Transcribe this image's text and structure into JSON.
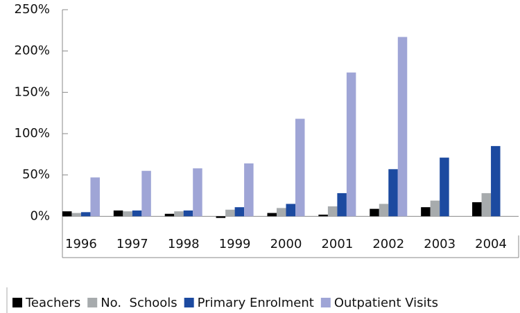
{
  "chart_data": {
    "type": "bar",
    "categories": [
      "1996",
      "1997",
      "1998",
      "1999",
      "2000",
      "2001",
      "2002",
      "2003",
      "2004"
    ],
    "series": [
      {
        "name": "Teachers",
        "color": "#000000",
        "values": [
          6,
          7,
          3,
          -2,
          4,
          2,
          9,
          11,
          17
        ]
      },
      {
        "name": "No.  Schools",
        "color": "#a7abad",
        "values": [
          4,
          6,
          6,
          8,
          10,
          12,
          15,
          19,
          28
        ]
      },
      {
        "name": "Primary Enrolment",
        "color": "#1c4aa0",
        "values": [
          5,
          7,
          7,
          11,
          15,
          28,
          57,
          71,
          85
        ]
      },
      {
        "name": "Outpatient Visits",
        "color": "#9fa5d6",
        "values": [
          47,
          55,
          58,
          64,
          118,
          174,
          217,
          null,
          null
        ]
      }
    ],
    "ylim": [
      -50,
      250
    ],
    "yticks": [
      {
        "value": 0,
        "label": "0%"
      },
      {
        "value": 50,
        "label": "50%"
      },
      {
        "value": 100,
        "label": "100%"
      },
      {
        "value": 150,
        "label": "150%"
      },
      {
        "value": 200,
        "label": "200%"
      },
      {
        "value": 250,
        "label": "250%"
      }
    ],
    "grid": false
  }
}
